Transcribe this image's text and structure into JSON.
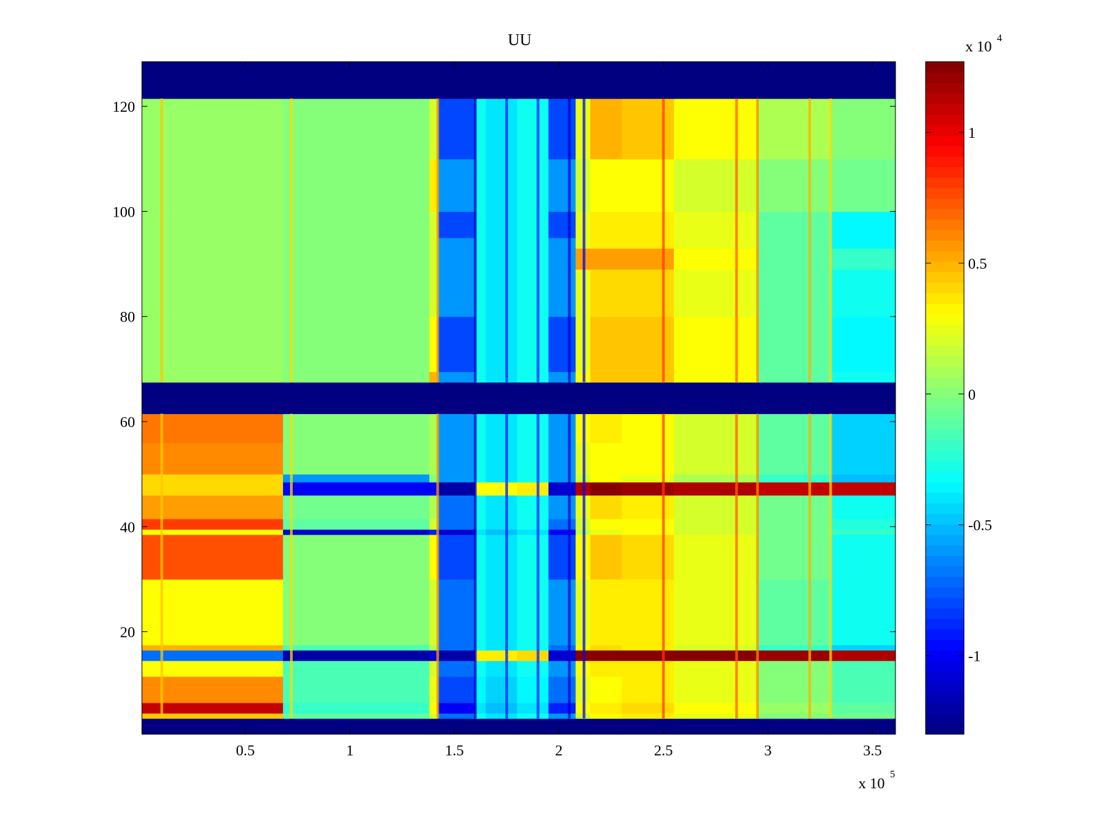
{
  "chart_data": {
    "type": "heatmap",
    "title": "UU",
    "xlabel": "",
    "ylabel": "",
    "x_multiplier_label": {
      "base": "x 10",
      "exp": "5"
    },
    "xlim": [
      0.005,
      3.61
    ],
    "ylim": [
      0.5,
      128.5
    ],
    "x_ticks": [
      0.5,
      1,
      1.5,
      2,
      2.5,
      3,
      3.5
    ],
    "x_tick_labels": [
      "0.5",
      "1",
      "1.5",
      "2",
      "2.5",
      "3",
      "3.5"
    ],
    "y_ticks": [
      20,
      40,
      60,
      80,
      100,
      120
    ],
    "y_tick_labels": [
      "20",
      "40",
      "60",
      "80",
      "100",
      "120"
    ],
    "grid": false,
    "colorbar": {
      "colormap": "jet",
      "clim": [
        -1.3,
        1.27
      ],
      "multiplier_label": {
        "base": "x 10",
        "exp": "4"
      },
      "ticks": [
        -1,
        -0.5,
        0,
        0.5,
        1
      ],
      "tick_labels": [
        "-1",
        "-0.5",
        "0",
        "0.5",
        "1"
      ]
    },
    "x_columns": [
      0.005,
      0.68,
      0.7,
      1.38,
      1.42,
      1.6,
      1.65,
      1.8,
      1.95,
      2.08,
      2.15,
      2.3,
      2.55,
      2.95,
      3.3,
      3.61
    ],
    "y_rows": [
      0.5,
      3.5,
      4.5,
      6.5,
      11.5,
      14.5,
      16.5,
      17.5,
      30,
      38.5,
      39.5,
      41.5,
      46,
      48.5,
      50,
      56,
      61.5,
      67.5,
      69.5,
      80,
      89,
      93,
      95,
      100,
      110,
      121.5,
      128.5
    ],
    "values": [
      [
        -1.3,
        -1.3,
        -1.3,
        -1.3,
        -1.3,
        -1.3,
        -1.3,
        -1.3,
        -1.3,
        -1.3,
        -1.3,
        -1.3,
        -1.3,
        -1.3,
        -1.3
      ],
      [
        0.45,
        -0.1,
        -0.1,
        0.2,
        -0.7,
        -0.3,
        -0.4,
        -0.3,
        -0.6,
        0.2,
        0.3,
        0.35,
        0.25,
        0.0,
        -0.05
      ],
      [
        1.1,
        -0.2,
        -0.2,
        0.3,
        -1.0,
        -0.4,
        -0.5,
        -0.4,
        -0.9,
        0.3,
        0.35,
        0.4,
        0.3,
        0.05,
        -0.1
      ],
      [
        0.6,
        -0.15,
        -0.15,
        0.25,
        -0.8,
        -0.35,
        -0.45,
        -0.35,
        -0.7,
        0.25,
        0.3,
        0.35,
        0.25,
        0.0,
        -0.15
      ],
      [
        0.3,
        -0.15,
        -0.15,
        0.2,
        -0.7,
        -0.3,
        -0.4,
        -0.3,
        -0.6,
        0.3,
        0.35,
        0.35,
        0.25,
        0.0,
        -0.15
      ],
      [
        -0.7,
        -1.2,
        -1.2,
        -1.1,
        -1.2,
        0.35,
        0.35,
        0.4,
        -1.1,
        1.25,
        1.25,
        1.25,
        1.25,
        1.2,
        1.15
      ],
      [
        0.5,
        -0.15,
        -0.15,
        0.1,
        -0.7,
        -0.3,
        -0.4,
        -0.3,
        -0.7,
        0.3,
        0.4,
        0.35,
        0.2,
        -0.2,
        -0.45
      ],
      [
        0.3,
        0.0,
        0.0,
        0.2,
        -0.7,
        -0.3,
        -0.4,
        -0.3,
        -0.6,
        0.25,
        0.35,
        0.35,
        0.25,
        -0.1,
        -0.3
      ],
      [
        0.75,
        0.0,
        0.0,
        0.3,
        -0.8,
        -0.3,
        -0.4,
        -0.3,
        -0.8,
        0.3,
        0.45,
        0.4,
        0.25,
        -0.05,
        -0.3
      ],
      [
        0.3,
        -1.1,
        -1.1,
        -0.9,
        -1.1,
        -0.4,
        -0.5,
        -0.4,
        -1.0,
        0.15,
        0.25,
        0.3,
        0.2,
        -0.05,
        -0.2
      ],
      [
        0.8,
        -0.1,
        -0.1,
        0.2,
        -0.7,
        -0.3,
        -0.4,
        -0.3,
        -0.7,
        0.2,
        0.3,
        0.3,
        0.2,
        -0.05,
        -0.25
      ],
      [
        0.55,
        -0.05,
        -0.05,
        0.1,
        -0.7,
        -0.3,
        -0.4,
        -0.3,
        -0.6,
        0.25,
        0.4,
        0.35,
        0.2,
        -0.05,
        -0.3
      ],
      [
        0.4,
        -1.0,
        -1.0,
        -1.0,
        -1.2,
        0.3,
        0.3,
        0.35,
        -1.1,
        1.15,
        1.25,
        1.2,
        1.15,
        1.1,
        1.1
      ],
      [
        0.4,
        -0.6,
        -0.6,
        0.0,
        -0.6,
        -0.3,
        -0.4,
        -0.3,
        -0.6,
        0.2,
        0.3,
        0.25,
        0.1,
        -0.2,
        -0.5
      ],
      [
        0.6,
        0.0,
        0.0,
        0.1,
        -0.6,
        -0.3,
        -0.4,
        -0.3,
        -0.6,
        0.25,
        0.3,
        0.3,
        0.2,
        -0.1,
        -0.45
      ],
      [
        0.65,
        0.0,
        0.0,
        0.1,
        -0.6,
        -0.3,
        -0.4,
        -0.3,
        -0.6,
        0.3,
        0.35,
        0.3,
        0.2,
        -0.1,
        -0.45
      ],
      [
        -1.3,
        -1.3,
        -1.3,
        -1.3,
        -1.3,
        -1.3,
        -1.3,
        -1.3,
        -1.3,
        -1.3,
        -1.3,
        -1.3,
        -1.3,
        -1.3,
        -1.3
      ],
      [
        0.05,
        0.0,
        0.0,
        0.5,
        -0.6,
        -0.3,
        -0.4,
        -0.3,
        -0.6,
        0.3,
        0.45,
        0.45,
        0.3,
        -0.1,
        -0.3
      ],
      [
        0.05,
        0.0,
        0.0,
        0.3,
        -0.8,
        -0.3,
        -0.4,
        -0.3,
        -0.8,
        0.25,
        0.45,
        0.45,
        0.3,
        -0.1,
        -0.35
      ],
      [
        0.05,
        0.0,
        0.0,
        0.2,
        -0.6,
        -0.3,
        -0.4,
        -0.3,
        -0.6,
        0.25,
        0.4,
        0.4,
        0.25,
        -0.1,
        -0.3
      ],
      [
        0.05,
        0.0,
        0.0,
        0.2,
        -0.6,
        -0.3,
        -0.4,
        -0.3,
        -0.6,
        0.55,
        0.55,
        0.55,
        0.3,
        -0.1,
        -0.2
      ],
      [
        0.05,
        0.0,
        0.0,
        0.2,
        -0.6,
        -0.3,
        -0.4,
        -0.3,
        -0.6,
        0.25,
        0.35,
        0.35,
        0.25,
        -0.1,
        -0.35
      ],
      [
        0.05,
        0.0,
        0.0,
        0.2,
        -0.8,
        -0.3,
        -0.4,
        -0.3,
        -0.8,
        0.25,
        0.35,
        0.35,
        0.25,
        -0.1,
        -0.35
      ],
      [
        0.05,
        0.0,
        0.0,
        0.35,
        -0.6,
        -0.3,
        -0.4,
        -0.3,
        -0.6,
        0.2,
        0.3,
        0.3,
        0.2,
        0.0,
        -0.05
      ],
      [
        0.05,
        0.0,
        0.0,
        0.2,
        -0.8,
        -0.3,
        -0.4,
        -0.3,
        -0.8,
        0.25,
        0.5,
        0.45,
        0.3,
        0.1,
        0.0
      ],
      [
        -1.3,
        -1.3,
        -1.3,
        -1.3,
        -1.3,
        -1.3,
        -1.3,
        -1.3,
        -1.3,
        -1.3,
        -1.3,
        -1.3,
        -1.3,
        -1.3,
        -1.3
      ]
    ],
    "value_streaks": [
      {
        "x": 0.1,
        "value": 0.45
      },
      {
        "x": 0.72,
        "value": 0.4
      },
      {
        "x": 1.42,
        "value": 0.55
      },
      {
        "x": 1.6,
        "value": -1.1
      },
      {
        "x": 1.75,
        "value": -0.9
      },
      {
        "x": 1.9,
        "value": -0.9
      },
      {
        "x": 2.05,
        "value": -1.1
      },
      {
        "x": 2.12,
        "value": -1.0
      },
      {
        "x": 2.5,
        "value": 0.8
      },
      {
        "x": 2.85,
        "value": 0.7
      },
      {
        "x": 2.95,
        "value": 0.6
      },
      {
        "x": 3.2,
        "value": 0.5
      },
      {
        "x": 3.3,
        "value": 0.4
      }
    ]
  }
}
